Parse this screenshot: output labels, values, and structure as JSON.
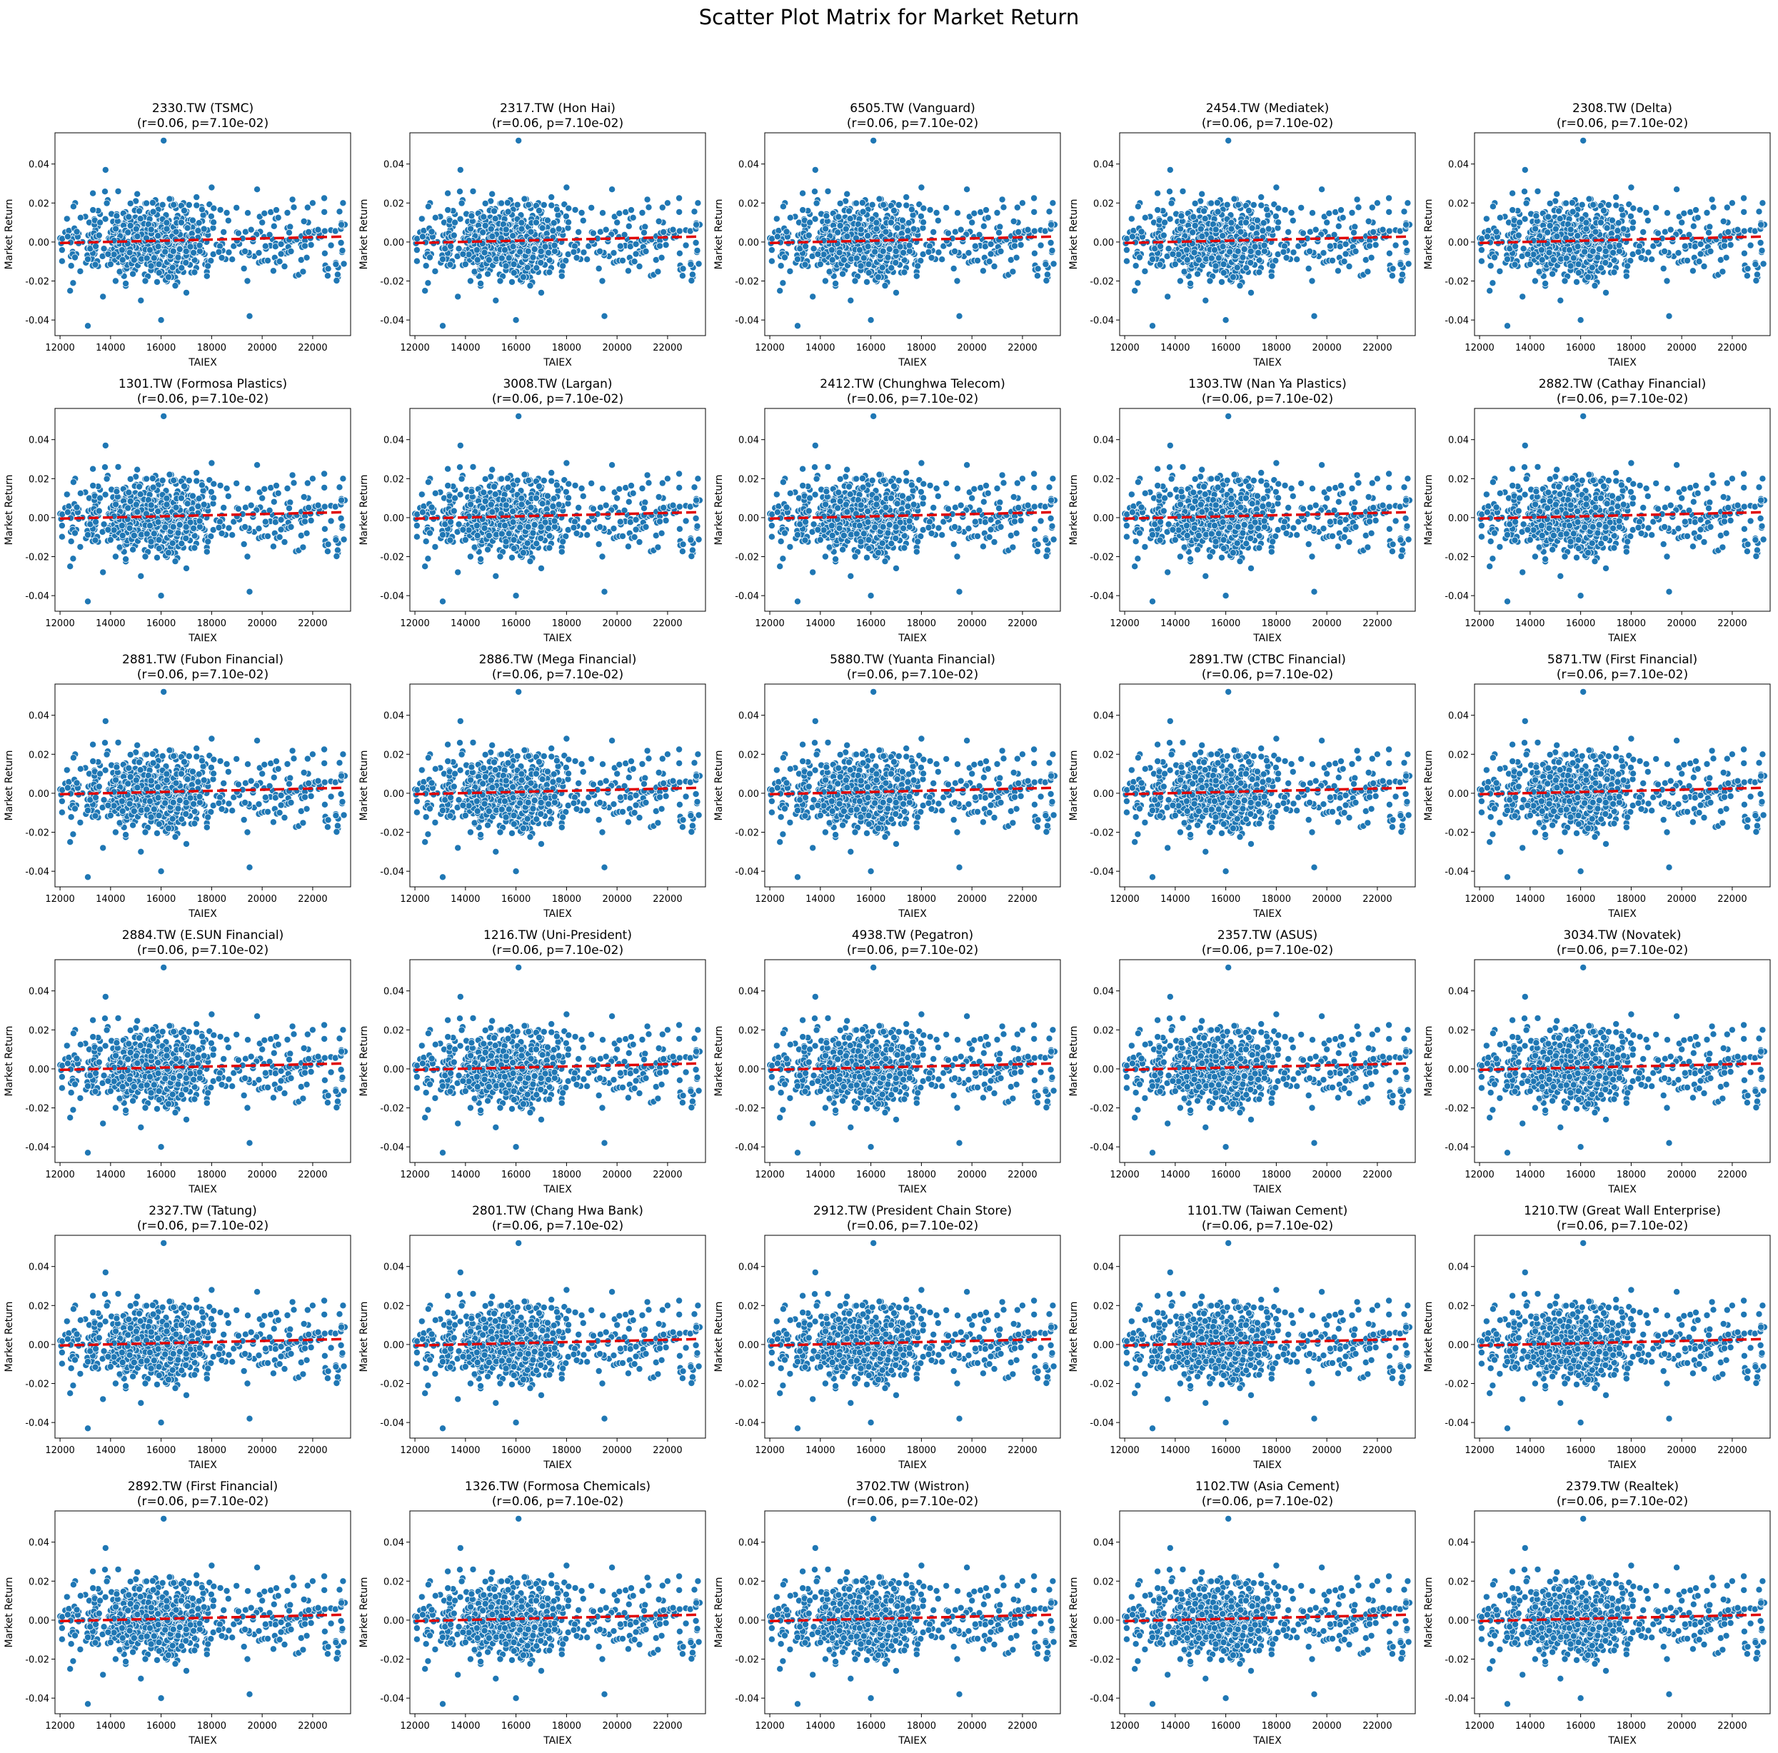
{
  "figure": {
    "title": "Scatter Plot Matrix for Market Return",
    "point_color": "#1f77b4",
    "point_edge_color": "#ffffff",
    "fit_line_color": "#e00000"
  },
  "chart_data": {
    "type": "scatter",
    "layout": "grid",
    "rows": 6,
    "cols": 5,
    "xlabel": "TAIEX",
    "ylabel": "Market Return",
    "xlim": [
      11800,
      23500
    ],
    "ylim": [
      -0.048,
      0.056
    ],
    "xticks": [
      12000,
      14000,
      16000,
      18000,
      20000,
      22000
    ],
    "yticks": [
      -0.04,
      -0.02,
      0.0,
      0.02,
      0.04
    ],
    "ytick_labels": [
      "-0.04",
      "-0.02",
      "0.00",
      "0.02",
      "0.04"
    ],
    "grid": false,
    "stats_label": "(r=0.06, p=7.10e-02)",
    "fit_line": {
      "style": "dashed",
      "x": [
        12000,
        23300
      ],
      "y": [
        -0.0005,
        0.0028
      ]
    },
    "points": [
      [
        12100,
        -0.01
      ],
      [
        12300,
        0.012
      ],
      [
        12400,
        -0.025
      ],
      [
        12200,
        0.005
      ],
      [
        12600,
        0.02
      ],
      [
        12800,
        -0.015
      ],
      [
        13000,
        0.013
      ],
      [
        13100,
        -0.043
      ],
      [
        13300,
        0.025
      ],
      [
        13500,
        0.008
      ],
      [
        13700,
        -0.028
      ],
      [
        13800,
        0.037
      ],
      [
        14000,
        0.005
      ],
      [
        14200,
        -0.02
      ],
      [
        14300,
        0.026
      ],
      [
        14500,
        0.003
      ],
      [
        14800,
        -0.013
      ],
      [
        15000,
        0.021
      ],
      [
        15200,
        -0.03
      ],
      [
        15500,
        0.015
      ],
      [
        15700,
        -0.008
      ],
      [
        15900,
        0.01
      ],
      [
        16000,
        -0.04
      ],
      [
        16100,
        0.052
      ],
      [
        16200,
        -0.002
      ],
      [
        16400,
        0.022
      ],
      [
        16500,
        -0.018
      ],
      [
        16700,
        0.004
      ],
      [
        16900,
        0.012
      ],
      [
        17000,
        -0.026
      ],
      [
        17200,
        0.008
      ],
      [
        17400,
        -0.01
      ],
      [
        17600,
        0.018
      ],
      [
        17800,
        0.0
      ],
      [
        18000,
        0.028
      ],
      [
        18300,
        -0.005
      ],
      [
        18600,
        0.015
      ],
      [
        19000,
        0.005
      ],
      [
        19500,
        -0.038
      ],
      [
        19800,
        0.027
      ],
      [
        20000,
        0.01
      ],
      [
        20500,
        -0.008
      ],
      [
        21000,
        0.015
      ],
      [
        21500,
        0.002
      ],
      [
        22000,
        0.02
      ],
      [
        22500,
        -0.012
      ],
      [
        23000,
        -0.018
      ],
      [
        23200,
        0.02
      ],
      [
        12500,
        -0.005
      ],
      [
        13200,
        0.0
      ]
    ],
    "panels": [
      {
        "title": "2330.TW (TSMC)"
      },
      {
        "title": "2317.TW (Hon Hai)"
      },
      {
        "title": "6505.TW (Vanguard)"
      },
      {
        "title": "2454.TW (Mediatek)"
      },
      {
        "title": "2308.TW (Delta)"
      },
      {
        "title": "1301.TW (Formosa Plastics)"
      },
      {
        "title": "3008.TW (Largan)"
      },
      {
        "title": "2412.TW (Chunghwa Telecom)"
      },
      {
        "title": "1303.TW (Nan Ya Plastics)"
      },
      {
        "title": "2882.TW (Cathay Financial)"
      },
      {
        "title": "2881.TW (Fubon Financial)"
      },
      {
        "title": "2886.TW (Mega Financial)"
      },
      {
        "title": "5880.TW (Yuanta Financial)"
      },
      {
        "title": "2891.TW (CTBC Financial)"
      },
      {
        "title": "5871.TW (First Financial)"
      },
      {
        "title": "2884.TW (E.SUN Financial)"
      },
      {
        "title": "1216.TW (Uni-President)"
      },
      {
        "title": "4938.TW (Pegatron)"
      },
      {
        "title": "2357.TW (ASUS)"
      },
      {
        "title": "3034.TW (Novatek)"
      },
      {
        "title": "2327.TW (Tatung)"
      },
      {
        "title": "2801.TW (Chang Hwa Bank)"
      },
      {
        "title": "2912.TW (President Chain Store)"
      },
      {
        "title": "1101.TW (Taiwan Cement)"
      },
      {
        "title": "1210.TW (Great Wall Enterprise)"
      },
      {
        "title": "2892.TW (First Financial)"
      },
      {
        "title": "1326.TW (Formosa Chemicals)"
      },
      {
        "title": "3702.TW (Wistron)"
      },
      {
        "title": "1102.TW (Asia Cement)"
      },
      {
        "title": "2379.TW (Realtek)"
      }
    ]
  }
}
